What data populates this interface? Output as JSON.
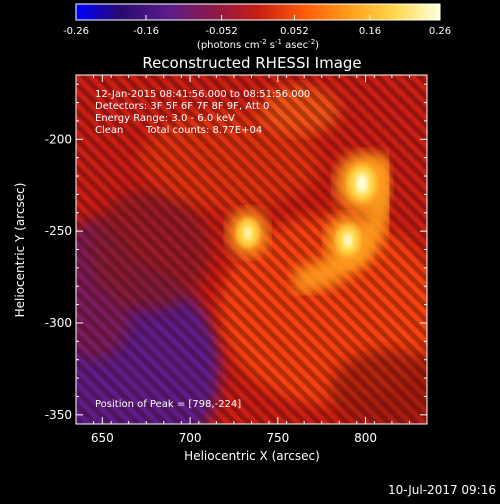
{
  "chart_data": {
    "type": "heatmap",
    "title": "Reconstructed RHESSI Image",
    "xlabel": "Heliocentric X (arcsec)",
    "ylabel": "Heliocentric Y (arcsec)",
    "xlim": [
      635,
      835
    ],
    "ylim": [
      -355,
      -165
    ],
    "xticks": [
      650,
      700,
      750,
      800
    ],
    "yticks": [
      -350,
      -300,
      -250,
      -200
    ],
    "colorbar": {
      "ticks": [
        "-0.26",
        "-0.16",
        "-0.052",
        "0.052",
        "0.16",
        "0.26"
      ],
      "unit_base": "(photons cm",
      "unit_exp1": "-2",
      "unit_mid": " s",
      "unit_exp2": "-1",
      "unit_mid2": " asec",
      "unit_exp3": "-2",
      "unit_end": ")",
      "range": [
        -0.26,
        0.26
      ],
      "colormap": [
        "#0000ff",
        "#2a0a6e",
        "#5b1c8a",
        "#8a1a4a",
        "#c81e14",
        "#ff5a0a",
        "#ff9d1c",
        "#ffd84a",
        "#ffffe0"
      ]
    },
    "annotations": {
      "time": "12-Jan-2015 08:41:56.000 to 08:51:56.000",
      "detectors": "Detectors: 3F 5F 6F 7F 8F 9F, Att 0",
      "energy": "Energy Range: 3.0 - 6.0 keV",
      "clean_label": "Clean",
      "total_counts": "Total counts: 8.77E+04",
      "peak": "Position of Peak = [798,-224]"
    },
    "sources": [
      {
        "x": 798,
        "y": -224,
        "value": 0.26
      },
      {
        "x": 790,
        "y": -255,
        "value": 0.22
      },
      {
        "x": 733,
        "y": -251,
        "value": 0.2
      }
    ],
    "footer_timestamp": "10-Jul-2017 09:16"
  }
}
